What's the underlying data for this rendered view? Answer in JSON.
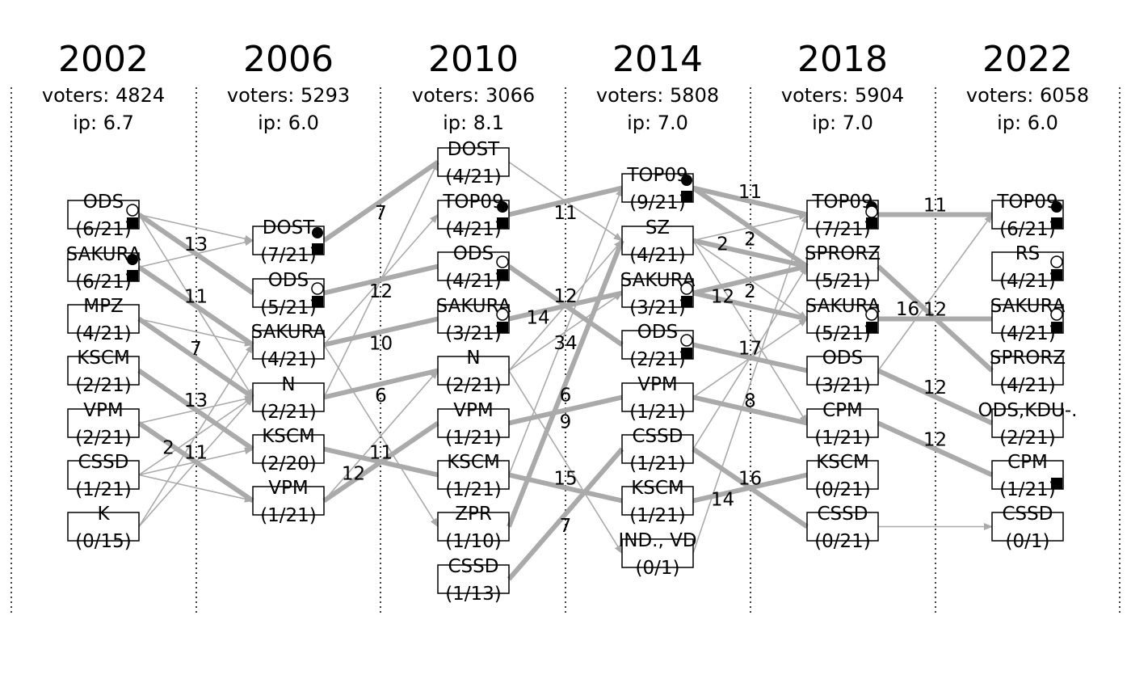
{
  "columns": [
    {
      "year": "2002",
      "voters": "voters: 4824",
      "ip": "ip: 6.7",
      "nodes": [
        {
          "name": "ODS",
          "seats": "(6/21)",
          "circle": "open",
          "square": true
        },
        {
          "name": "SAKURA",
          "seats": "(6/21)",
          "circle": "filled",
          "square": true
        },
        {
          "name": "MPZ",
          "seats": "(4/21)",
          "circle": null,
          "square": false
        },
        {
          "name": "KSCM",
          "seats": "(2/21)",
          "circle": null,
          "square": false
        },
        {
          "name": "VPM",
          "seats": "(2/21)",
          "circle": null,
          "square": false
        },
        {
          "name": "CSSD",
          "seats": "(1/21)",
          "circle": null,
          "square": false
        },
        {
          "name": "K",
          "seats": "(0/15)",
          "circle": null,
          "square": false
        }
      ]
    },
    {
      "year": "2006",
      "voters": "voters: 5293",
      "ip": "ip: 6.0",
      "nodes": [
        {
          "name": "DOST",
          "seats": "(7/21)",
          "circle": "filled",
          "square": true
        },
        {
          "name": "ODS",
          "seats": "(5/21)",
          "circle": "open",
          "square": true
        },
        {
          "name": "SAKURA",
          "seats": "(4/21)",
          "circle": null,
          "square": false
        },
        {
          "name": "N",
          "seats": "(2/21)",
          "circle": null,
          "square": false
        },
        {
          "name": "KSCM",
          "seats": "(2/20)",
          "circle": null,
          "square": false
        },
        {
          "name": "VPM",
          "seats": "(1/21)",
          "circle": null,
          "square": false
        }
      ]
    },
    {
      "year": "2010",
      "voters": "voters: 3066",
      "ip": "ip: 8.1",
      "nodes": [
        {
          "name": "DOST",
          "seats": "(4/21)",
          "circle": null,
          "square": false
        },
        {
          "name": "TOP09",
          "seats": "(4/21)",
          "circle": "filled",
          "square": true
        },
        {
          "name": "ODS",
          "seats": "(4/21)",
          "circle": "open",
          "square": true
        },
        {
          "name": "SAKURA",
          "seats": "(3/21)",
          "circle": "open",
          "square": true
        },
        {
          "name": "N",
          "seats": "(2/21)",
          "circle": null,
          "square": false
        },
        {
          "name": "VPM",
          "seats": "(1/21)",
          "circle": null,
          "square": false
        },
        {
          "name": "KSCM",
          "seats": "(1/21)",
          "circle": null,
          "square": false
        },
        {
          "name": "ZPR",
          "seats": "(1/10)",
          "circle": null,
          "square": false
        },
        {
          "name": "CSSD",
          "seats": "(1/13)",
          "circle": null,
          "square": false
        }
      ]
    },
    {
      "year": "2014",
      "voters": "voters: 5808",
      "ip": "ip: 7.0",
      "nodes": [
        {
          "name": "TOP09",
          "seats": "(9/21)",
          "circle": "filled",
          "square": true
        },
        {
          "name": "SZ",
          "seats": "(4/21)",
          "circle": null,
          "square": false
        },
        {
          "name": "SAKURA",
          "seats": "(3/21)",
          "circle": "open",
          "square": true
        },
        {
          "name": "ODS",
          "seats": "(2/21)",
          "circle": "open",
          "square": true
        },
        {
          "name": "VPM",
          "seats": "(1/21)",
          "circle": null,
          "square": false
        },
        {
          "name": "CSSD",
          "seats": "(1/21)",
          "circle": null,
          "square": false
        },
        {
          "name": "KSCM",
          "seats": "(1/21)",
          "circle": null,
          "square": false
        },
        {
          "name": "IND., VD",
          "seats": "(0/1)",
          "circle": null,
          "square": false
        }
      ]
    },
    {
      "year": "2018",
      "voters": "voters: 5904",
      "ip": "ip: 7.0",
      "nodes": [
        {
          "name": "TOP09",
          "seats": "(7/21)",
          "circle": "both",
          "square": true
        },
        {
          "name": "SPRORZ",
          "seats": "(5/21)",
          "circle": null,
          "square": false
        },
        {
          "name": "SAKURA",
          "seats": "(5/21)",
          "circle": "open",
          "square": true
        },
        {
          "name": "ODS",
          "seats": "(3/21)",
          "circle": null,
          "square": false
        },
        {
          "name": "CPM",
          "seats": "(1/21)",
          "circle": null,
          "square": false
        },
        {
          "name": "KSCM",
          "seats": "(0/21)",
          "circle": null,
          "square": false
        },
        {
          "name": "CSSD",
          "seats": "(0/21)",
          "circle": null,
          "square": false
        }
      ]
    },
    {
      "year": "2022",
      "voters": "voters: 6058",
      "ip": "ip: 6.0",
      "nodes": [
        {
          "name": "TOP09",
          "seats": "(6/21)",
          "circle": "filled",
          "square": true
        },
        {
          "name": "RS",
          "seats": "(4/21)",
          "circle": "open",
          "square": true
        },
        {
          "name": "SAKURA",
          "seats": "(4/21)",
          "circle": "open",
          "square": true
        },
        {
          "name": "SPRORZ",
          "seats": "(4/21)",
          "circle": null,
          "square": false
        },
        {
          "name": "ODS,KDU-.",
          "seats": "(2/21)",
          "circle": null,
          "square": false
        },
        {
          "name": "CPM",
          "seats": "(1/21)",
          "circle": null,
          "square": true
        },
        {
          "name": "CSSD",
          "seats": "(0/1)",
          "circle": null,
          "square": false
        }
      ]
    }
  ],
  "edges": [
    {
      "from": [
        0,
        0
      ],
      "to": [
        1,
        1
      ],
      "thick": true,
      "label": "13"
    },
    {
      "from": [
        0,
        1
      ],
      "to": [
        1,
        2
      ],
      "thick": true,
      "label": "11"
    },
    {
      "from": [
        0,
        2
      ],
      "to": [
        1,
        3
      ],
      "thick": true,
      "label": "7"
    },
    {
      "from": [
        0,
        3
      ],
      "to": [
        1,
        4
      ],
      "thick": true,
      "label": "13"
    },
    {
      "from": [
        0,
        4
      ],
      "to": [
        1,
        5
      ],
      "thick": true,
      "label": "11"
    },
    {
      "from": [
        0,
        0
      ],
      "to": [
        1,
        0
      ],
      "thick": false,
      "label": null
    },
    {
      "from": [
        0,
        1
      ],
      "to": [
        1,
        0
      ],
      "thick": false,
      "label": null
    },
    {
      "from": [
        0,
        0
      ],
      "to": [
        1,
        3
      ],
      "thick": false,
      "label": null
    },
    {
      "from": [
        0,
        2
      ],
      "to": [
        1,
        2
      ],
      "thick": false,
      "label": null
    },
    {
      "from": [
        0,
        4
      ],
      "to": [
        1,
        3
      ],
      "thick": false,
      "label": null
    },
    {
      "from": [
        0,
        5
      ],
      "to": [
        1,
        3
      ],
      "thick": false,
      "label": "2"
    },
    {
      "from": [
        0,
        5
      ],
      "to": [
        1,
        4
      ],
      "thick": false,
      "label": null
    },
    {
      "from": [
        0,
        5
      ],
      "to": [
        1,
        5
      ],
      "thick": false,
      "label": null
    },
    {
      "from": [
        0,
        6
      ],
      "to": [
        1,
        2
      ],
      "thick": false,
      "label": null
    },
    {
      "from": [
        0,
        6
      ],
      "to": [
        1,
        3
      ],
      "thick": false,
      "label": null
    },
    {
      "from": [
        1,
        0
      ],
      "to": [
        2,
        0
      ],
      "thick": true,
      "label": "7"
    },
    {
      "from": [
        1,
        1
      ],
      "to": [
        2,
        2
      ],
      "thick": true,
      "label": "12"
    },
    {
      "from": [
        1,
        2
      ],
      "to": [
        2,
        3
      ],
      "thick": true,
      "label": "10"
    },
    {
      "from": [
        1,
        3
      ],
      "to": [
        2,
        4
      ],
      "thick": true,
      "label": "6"
    },
    {
      "from": [
        1,
        4
      ],
      "to": [
        2,
        6
      ],
      "thick": true,
      "label": "11"
    },
    {
      "from": [
        1,
        5
      ],
      "to": [
        2,
        5
      ],
      "thick": true,
      "label": "12"
    },
    {
      "from": [
        1,
        2
      ],
      "to": [
        2,
        1
      ],
      "thick": false,
      "label": null
    },
    {
      "from": [
        1,
        3
      ],
      "to": [
        2,
        0
      ],
      "thick": false,
      "label": null
    },
    {
      "from": [
        1,
        2
      ],
      "to": [
        2,
        7
      ],
      "thick": false,
      "label": null
    },
    {
      "from": [
        1,
        5
      ],
      "to": [
        2,
        4
      ],
      "thick": false,
      "label": null
    },
    {
      "from": [
        2,
        1
      ],
      "to": [
        3,
        0
      ],
      "thick": true,
      "label": "11"
    },
    {
      "from": [
        2,
        2
      ],
      "to": [
        3,
        3
      ],
      "thick": true,
      "label": "12"
    },
    {
      "from": [
        2,
        3
      ],
      "to": [
        3,
        2
      ],
      "thick": true,
      "label": "14"
    },
    {
      "from": [
        2,
        5
      ],
      "to": [
        3,
        4
      ],
      "thick": true,
      "label": "9"
    },
    {
      "from": [
        2,
        6
      ],
      "to": [
        3,
        6
      ],
      "thick": true,
      "label": "15"
    },
    {
      "from": [
        2,
        7
      ],
      "to": [
        3,
        1
      ],
      "thick": true,
      "label": "6"
    },
    {
      "from": [
        2,
        8
      ],
      "to": [
        3,
        5
      ],
      "thick": true,
      "label": "7"
    },
    {
      "from": [
        2,
        6
      ],
      "to": [
        3,
        0
      ],
      "thick": false,
      "label": "34"
    },
    {
      "from": [
        2,
        0
      ],
      "to": [
        3,
        1
      ],
      "thick": false,
      "label": null
    },
    {
      "from": [
        2,
        4
      ],
      "to": [
        3,
        1
      ],
      "thick": false,
      "label": null
    },
    {
      "from": [
        2,
        4
      ],
      "to": [
        3,
        2
      ],
      "thick": false,
      "label": null
    },
    {
      "from": [
        2,
        4
      ],
      "to": [
        3,
        7
      ],
      "thick": false,
      "label": null
    },
    {
      "from": [
        3,
        0
      ],
      "to": [
        4,
        0
      ],
      "thick": true,
      "label": "11"
    },
    {
      "from": [
        3,
        0
      ],
      "to": [
        4,
        1
      ],
      "thick": true,
      "label": null
    },
    {
      "from": [
        3,
        1
      ],
      "to": [
        4,
        0
      ],
      "thick": false,
      "label": "2"
    },
    {
      "from": [
        3,
        1
      ],
      "to": [
        4,
        1
      ],
      "thick": true,
      "label": "2"
    },
    {
      "from": [
        3,
        2
      ],
      "to": [
        4,
        1
      ],
      "thick": true,
      "label": "2"
    },
    {
      "from": [
        3,
        2
      ],
      "to": [
        4,
        2
      ],
      "thick": true,
      "label": "12"
    },
    {
      "from": [
        3,
        1
      ],
      "to": [
        4,
        2
      ],
      "thick": false,
      "label": null
    },
    {
      "from": [
        3,
        1
      ],
      "to": [
        4,
        4
      ],
      "thick": false,
      "label": null
    },
    {
      "from": [
        3,
        3
      ],
      "to": [
        4,
        3
      ],
      "thick": true,
      "label": "17"
    },
    {
      "from": [
        3,
        4
      ],
      "to": [
        4,
        4
      ],
      "thick": true,
      "label": "8"
    },
    {
      "from": [
        3,
        5
      ],
      "to": [
        4,
        6
      ],
      "thick": true,
      "label": "16"
    },
    {
      "from": [
        3,
        6
      ],
      "to": [
        4,
        5
      ],
      "thick": true,
      "label": "14"
    },
    {
      "from": [
        3,
        4
      ],
      "to": [
        4,
        2
      ],
      "thick": false,
      "label": null
    },
    {
      "from": [
        3,
        5
      ],
      "to": [
        4,
        1
      ],
      "thick": false,
      "label": null
    },
    {
      "from": [
        3,
        7
      ],
      "to": [
        4,
        0
      ],
      "thick": false,
      "label": null
    },
    {
      "from": [
        4,
        0
      ],
      "to": [
        5,
        0
      ],
      "thick": true,
      "label": "11"
    },
    {
      "from": [
        4,
        2
      ],
      "to": [
        5,
        2
      ],
      "thick": true,
      "label": "12"
    },
    {
      "from": [
        4,
        1
      ],
      "to": [
        5,
        3
      ],
      "thick": true,
      "label": "16"
    },
    {
      "from": [
        4,
        3
      ],
      "to": [
        5,
        4
      ],
      "thick": true,
      "label": "12"
    },
    {
      "from": [
        4,
        4
      ],
      "to": [
        5,
        5
      ],
      "thick": true,
      "label": "12"
    },
    {
      "from": [
        4,
        6
      ],
      "to": [
        5,
        6
      ],
      "thick": false,
      "label": null
    },
    {
      "from": [
        4,
        3
      ],
      "to": [
        5,
        0
      ],
      "thick": false,
      "label": null
    }
  ],
  "colors": {
    "edge": "#aaaaaa",
    "box": "#000000"
  }
}
